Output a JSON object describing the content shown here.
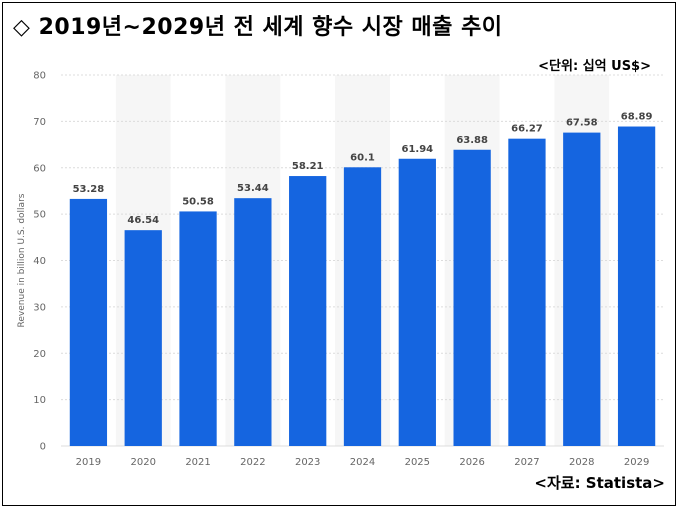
{
  "title": "◇ 2019년~2029년 전 세계 향수 시장 매출 추이",
  "unit_note": "<단위: 십억 US$>",
  "source_note": "<자료: Statista>",
  "colors": {
    "bar": "#1565e0",
    "band": "#f6f6f6",
    "grid": "#dcdcdc"
  },
  "chart_data": {
    "type": "bar",
    "categories": [
      "2019",
      "2020",
      "2021",
      "2022",
      "2023",
      "2024",
      "2025",
      "2026",
      "2027",
      "2028",
      "2029"
    ],
    "values": [
      53.28,
      46.54,
      50.58,
      53.44,
      58.21,
      60.1,
      61.94,
      63.88,
      66.27,
      67.58,
      68.89
    ],
    "value_labels": [
      "53.28",
      "46.54",
      "50.58",
      "53.44",
      "58.21",
      "60.1",
      "61.94",
      "63.88",
      "66.27",
      "67.58",
      "68.89"
    ],
    "ylabel": "Revenue in billion U.S. dollars",
    "ylim": [
      0,
      80
    ],
    "yticks": [
      "0",
      "10",
      "20",
      "30",
      "40",
      "50",
      "60",
      "70",
      "80"
    ],
    "grid": true
  }
}
